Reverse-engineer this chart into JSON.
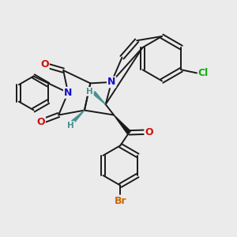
{
  "bg_color": "#ebebeb",
  "bond_color": "#1a1a1a",
  "bond_width": 1.4,
  "atom_colors": {
    "N": "#1010cc",
    "O": "#cc1010",
    "Cl": "#10aa10",
    "Br": "#cc6600",
    "H": "#4a9090",
    "C": "#1a1a1a"
  },
  "font_size_atom": 9,
  "font_size_small": 7.5
}
